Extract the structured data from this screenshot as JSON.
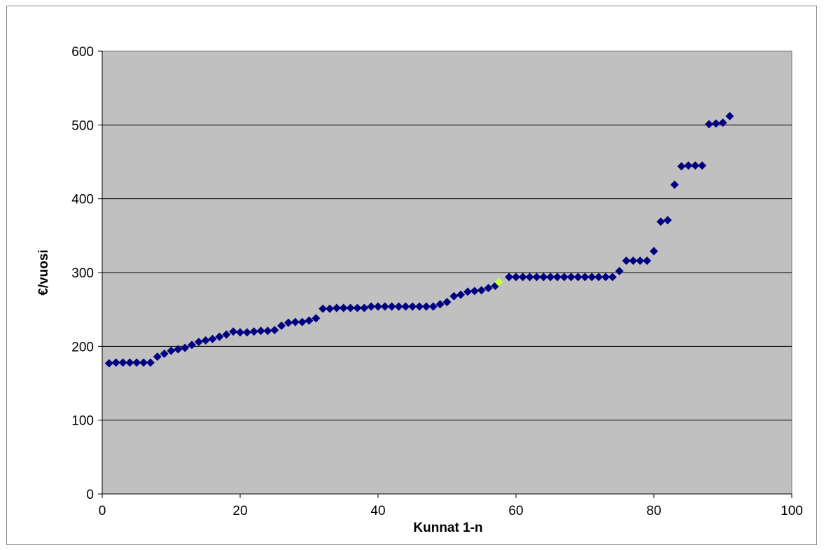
{
  "chart_data": {
    "type": "scatter",
    "title": "",
    "xlabel": "Kunnat 1-n",
    "ylabel": "€/vuosi",
    "xlim": [
      0,
      100
    ],
    "ylim": [
      0,
      600
    ],
    "x_ticks": [
      0,
      20,
      40,
      60,
      80,
      100
    ],
    "y_ticks": [
      0,
      100,
      200,
      300,
      400,
      500,
      600
    ],
    "grid": "horizontal",
    "legend": "none",
    "plot_background": "#c0c0c0",
    "series": [
      {
        "marker": "diamond",
        "color": "#000080",
        "points": [
          [
            1,
            177
          ],
          [
            2,
            178
          ],
          [
            3,
            178
          ],
          [
            4,
            178
          ],
          [
            5,
            178
          ],
          [
            6,
            178
          ],
          [
            7,
            178
          ],
          [
            8,
            186
          ],
          [
            9,
            190
          ],
          [
            10,
            194
          ],
          [
            11,
            196
          ],
          [
            12,
            198
          ],
          [
            13,
            202
          ],
          [
            14,
            206
          ],
          [
            15,
            208
          ],
          [
            16,
            210
          ],
          [
            17,
            213
          ],
          [
            18,
            216
          ],
          [
            19,
            220
          ],
          [
            20,
            219
          ],
          [
            21,
            219
          ],
          [
            22,
            220
          ],
          [
            23,
            221
          ],
          [
            24,
            221
          ],
          [
            25,
            222
          ],
          [
            26,
            228
          ],
          [
            27,
            232
          ],
          [
            28,
            233
          ],
          [
            29,
            233
          ],
          [
            30,
            235
          ],
          [
            31,
            238
          ],
          [
            32,
            251
          ],
          [
            33,
            251
          ],
          [
            34,
            252
          ],
          [
            35,
            252
          ],
          [
            36,
            252
          ],
          [
            37,
            252
          ],
          [
            38,
            252
          ],
          [
            39,
            254
          ],
          [
            40,
            254
          ],
          [
            41,
            254
          ],
          [
            42,
            254
          ],
          [
            43,
            254
          ],
          [
            44,
            254
          ],
          [
            45,
            254
          ],
          [
            46,
            254
          ],
          [
            47,
            254
          ],
          [
            48,
            254
          ],
          [
            49,
            257
          ],
          [
            50,
            260
          ],
          [
            51,
            268
          ],
          [
            52,
            270
          ],
          [
            53,
            274
          ],
          [
            54,
            275
          ],
          [
            55,
            276
          ],
          [
            56,
            279
          ],
          [
            57,
            282
          ],
          [
            59,
            294
          ],
          [
            60,
            294
          ],
          [
            61,
            294
          ],
          [
            62,
            294
          ],
          [
            63,
            294
          ],
          [
            64,
            294
          ],
          [
            65,
            294
          ],
          [
            66,
            294
          ],
          [
            67,
            294
          ],
          [
            68,
            294
          ],
          [
            69,
            294
          ],
          [
            70,
            294
          ],
          [
            71,
            294
          ],
          [
            72,
            294
          ],
          [
            73,
            294
          ],
          [
            74,
            294
          ],
          [
            75,
            302
          ],
          [
            76,
            316
          ],
          [
            77,
            316
          ],
          [
            78,
            316
          ],
          [
            79,
            316
          ],
          [
            80,
            329
          ],
          [
            81,
            369
          ],
          [
            82,
            371
          ],
          [
            83,
            419
          ],
          [
            84,
            444
          ],
          [
            85,
            445
          ],
          [
            86,
            445
          ],
          [
            87,
            445
          ],
          [
            88,
            501
          ],
          [
            89,
            502
          ],
          [
            90,
            503
          ],
          [
            91,
            512
          ]
        ]
      },
      {
        "marker": "diamond",
        "color": "#ccff33",
        "points": [
          [
            57.5,
            287
          ]
        ]
      }
    ]
  }
}
